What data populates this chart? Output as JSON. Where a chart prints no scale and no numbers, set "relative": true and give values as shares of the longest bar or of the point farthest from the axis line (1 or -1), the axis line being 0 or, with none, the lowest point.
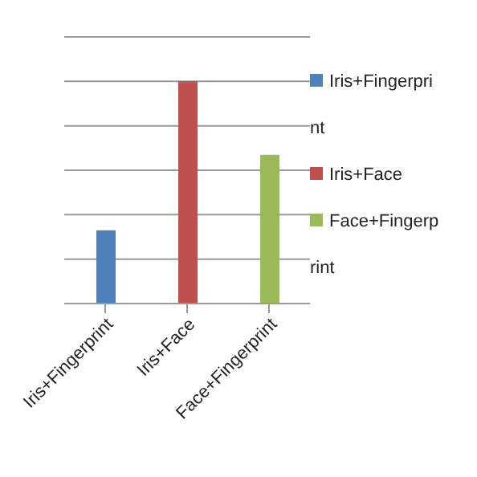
{
  "chart_data": {
    "type": "bar",
    "relative": true,
    "categories": [
      "Iris+Fingerprint",
      "Iris+Face",
      "Face+Fingerprint"
    ],
    "series": [
      {
        "name": "Iris+Fingerprint",
        "color": "#4f81bd",
        "values": [
          0.33,
          null,
          null
        ]
      },
      {
        "name": "Iris+Face",
        "color": "#c0504d",
        "values": [
          null,
          1,
          null
        ]
      },
      {
        "name": "Face+Fingerprint",
        "color": "#9bbb59",
        "values": [
          null,
          null,
          0.67
        ]
      }
    ],
    "grid": "y",
    "legend": "right"
  }
}
